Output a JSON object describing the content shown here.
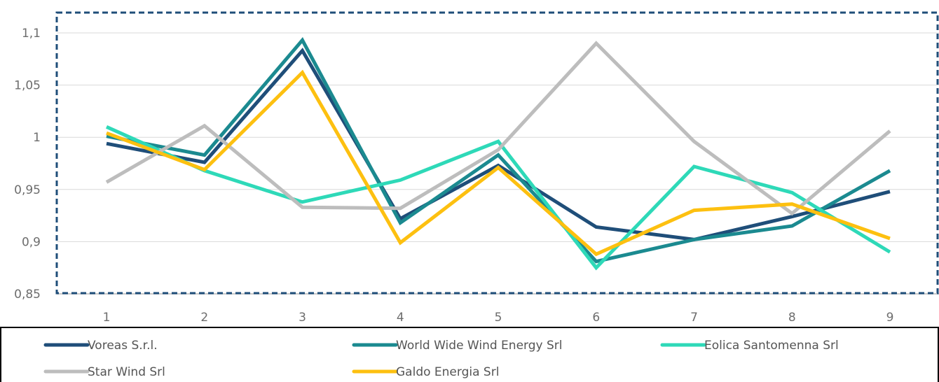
{
  "chart_data": {
    "type": "line",
    "title": "",
    "xlabel": "",
    "ylabel": "",
    "x": [
      1,
      2,
      3,
      4,
      5,
      6,
      7,
      8,
      9
    ],
    "x_tick_labels": [
      "1",
      "2",
      "3",
      "4",
      "5",
      "6",
      "7",
      "8",
      "9"
    ],
    "ylim": [
      0.85,
      1.1
    ],
    "y_ticks": [
      0.85,
      0.9,
      0.95,
      1,
      1.05,
      1.1
    ],
    "y_tick_labels": [
      "0,85",
      "0,9",
      "0,95",
      "1",
      "1,05",
      "1,1"
    ],
    "grid": "horizontal",
    "legend_position": "bottom",
    "series": [
      {
        "name": "Voreas S.r.l.",
        "color": "#1f4e79",
        "values": [
          0.994,
          0.976,
          1.083,
          0.922,
          0.973,
          0.914,
          0.902,
          0.924,
          0.948
        ]
      },
      {
        "name": "World Wide Wind Energy Srl",
        "color": "#1b8a90",
        "values": [
          1.001,
          0.983,
          1.093,
          0.918,
          0.983,
          0.881,
          0.902,
          0.915,
          0.968
        ]
      },
      {
        "name": "Eolica Santomenna Srl",
        "color": "#2ed9b8",
        "values": [
          1.01,
          0.968,
          0.938,
          0.959,
          0.996,
          0.875,
          0.972,
          0.947,
          0.89
        ]
      },
      {
        "name": "Star Wind Srl",
        "color": "#bdbdbd",
        "values": [
          0.957,
          1.011,
          0.933,
          0.932,
          0.988,
          1.09,
          0.996,
          0.927,
          1.006
        ]
      },
      {
        "name": "Galdo Energia Srl",
        "color": "#fdc010",
        "values": [
          1.004,
          0.969,
          1.062,
          0.899,
          0.971,
          0.888,
          0.93,
          0.936,
          0.903
        ]
      }
    ]
  }
}
